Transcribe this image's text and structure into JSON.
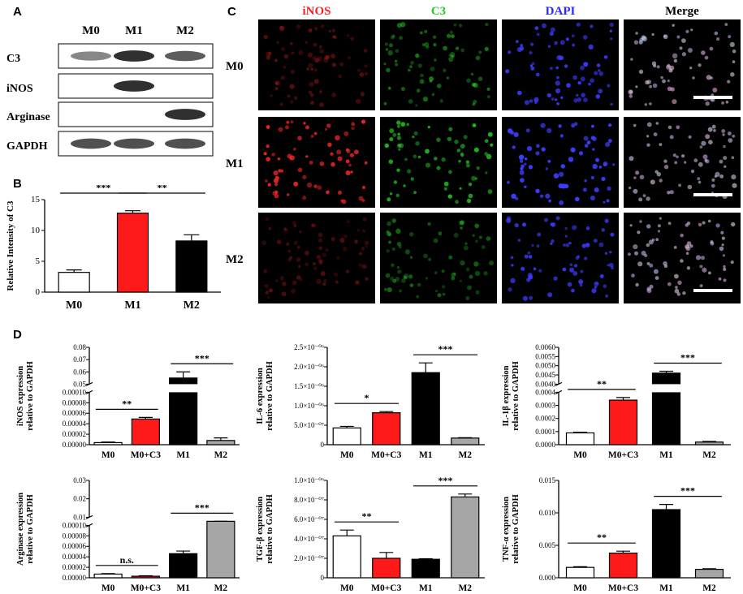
{
  "panels": {
    "A": "A",
    "B": "B",
    "C": "C",
    "D": "D"
  },
  "colors": {
    "white": "#ffffff",
    "red": "#ff1a1a",
    "black": "#000000",
    "gray": "#a6a6a6",
    "ifRed": "#ff2020",
    "ifGreen": "#22cc22",
    "ifBlue": "#2a2aff"
  },
  "blot": {
    "columns": [
      "M0",
      "M1",
      "M2"
    ],
    "rows": [
      {
        "label": "C3",
        "bands": [
          0.55,
          0.95,
          0.75
        ]
      },
      {
        "label": "iNOS",
        "bands": [
          0.0,
          0.95,
          0.0
        ]
      },
      {
        "label": "Arginase",
        "bands": [
          0.0,
          0.0,
          0.95
        ]
      },
      {
        "label": "GAPDH",
        "bands": [
          0.8,
          0.8,
          0.8
        ]
      }
    ]
  },
  "if_panel": {
    "columns": [
      "iNOS",
      "C3",
      "DAPI",
      "Merge"
    ],
    "rows": [
      "M0",
      "M1",
      "M2"
    ]
  },
  "chart_data": [
    {
      "id": "B",
      "type": "bar",
      "categories": [
        "M0",
        "M1",
        "M2"
      ],
      "values": [
        3.2,
        12.8,
        8.3
      ],
      "errors": [
        0.4,
        0.4,
        1.0
      ],
      "ylabel": "Relative Intensity of C3",
      "ylim": [
        0,
        15
      ],
      "yticks": [
        "0",
        "5",
        "10",
        "15"
      ],
      "ytick_values": [
        0,
        5,
        10,
        15
      ],
      "significance": [
        {
          "from": 0,
          "to": 1,
          "label": "***"
        },
        {
          "from": 1,
          "to": 2,
          "label": "**"
        }
      ]
    },
    {
      "id": "D-iNOS",
      "type": "bar",
      "categories": [
        "M0",
        "M0+C3",
        "M1",
        "M2"
      ],
      "values": [
        4e-06,
        4.9e-05,
        0.055,
        8e-06
      ],
      "errors": [
        1e-06,
        3e-06,
        0.005,
        5e-06
      ],
      "ylabel": [
        "iNOS  expression",
        "relative to GAPDH"
      ],
      "segments": [
        {
          "ticks": [
            0,
            2e-05,
            4e-05,
            6e-05,
            8e-05,
            0.0001
          ],
          "labels": [
            "0.00000",
            "0.00002",
            "0.00004",
            "0.00006",
            "0.00008",
            "0.00010"
          ]
        },
        {
          "ticks": [
            0.05,
            0.06,
            0.07,
            0.08
          ],
          "labels": [
            "0.05",
            "0.06",
            "0.07",
            "0.08"
          ]
        }
      ],
      "significance": [
        {
          "from": 0,
          "to": 1,
          "label": "**"
        },
        {
          "from": 2,
          "to": 3,
          "label": "***"
        }
      ]
    },
    {
      "id": "D-IL6",
      "type": "bar",
      "categories": [
        "M0",
        "M0+C3",
        "M1",
        "M2"
      ],
      "values": [
        4.3e-07,
        8.2e-07,
        1.85e-06,
        1.7e-07
      ],
      "errors": [
        4e-08,
        3e-08,
        2.5e-07,
        1e-08
      ],
      "ylabel": [
        "IL-6 expression",
        "relative to GAPDH"
      ],
      "ylim": [
        0,
        2.5e-06
      ],
      "ytick_values": [
        0,
        5e-07,
        1e-06,
        1.5e-06,
        2e-06,
        2.5e-06
      ],
      "yticks": [
        "0",
        "5.0×10⁻⁰⁷",
        "1.0×10⁻⁰⁶",
        "1.5×10⁻⁰⁶",
        "2.0×10⁻⁰⁶",
        "2.5×10⁻⁰⁶"
      ],
      "significance": [
        {
          "from": 0,
          "to": 1,
          "label": "*"
        },
        {
          "from": 2,
          "to": 3,
          "label": "***"
        }
      ]
    },
    {
      "id": "D-IL1b",
      "type": "bar",
      "categories": [
        "M0",
        "M0+C3",
        "M1",
        "M2"
      ],
      "values": [
        9e-05,
        0.00034,
        0.0046,
        2e-05
      ],
      "errors": [
        5e-06,
        2e-05,
        0.0001,
        5e-06
      ],
      "ylabel": [
        "IL-1β expression",
        "relative to GAPDH"
      ],
      "segments": [
        {
          "ticks": [
            0,
            0.0001,
            0.0002,
            0.0003,
            0.0004
          ],
          "labels": [
            "0.0000",
            "0.0001",
            "0.0002",
            "0.0003",
            "0.0004"
          ]
        },
        {
          "ticks": [
            0.004,
            0.0045,
            0.005,
            0.0055,
            0.006
          ],
          "labels": [
            "0.0040",
            "0.0045",
            "0.0050",
            "0.0055",
            "0.0060"
          ]
        }
      ],
      "significance": [
        {
          "from": 0,
          "to": 1,
          "label": "**"
        },
        {
          "from": 2,
          "to": 3,
          "label": "***"
        }
      ]
    },
    {
      "id": "D-Arginase",
      "type": "bar",
      "categories": [
        "M0",
        "M0+C3",
        "M1",
        "M2"
      ],
      "values": [
        7e-06,
        3e-06,
        4.6e-05,
        0.008
      ],
      "errors": [
        1e-06,
        1e-06,
        5e-06,
        0.001
      ],
      "ylabel": [
        "Arginase expression",
        "relative to GAPDH"
      ],
      "segments": [
        {
          "ticks": [
            0,
            2e-05,
            4e-05,
            6e-05,
            8e-05,
            0.0001
          ],
          "labels": [
            "0.00000",
            "0.00002",
            "0.00004",
            "0.00006",
            "0.00008",
            "0.00010"
          ]
        },
        {
          "ticks": [
            0.01,
            0.02,
            0.03
          ],
          "labels": [
            "0.01",
            "0.02",
            "0.03"
          ]
        }
      ],
      "significance": [
        {
          "from": 0,
          "to": 1,
          "label": "n.s."
        },
        {
          "from": 2,
          "to": 3,
          "label": "***"
        }
      ]
    },
    {
      "id": "D-TGFb",
      "type": "bar",
      "categories": [
        "M0",
        "M0+C3",
        "M1",
        "M2"
      ],
      "values": [
        4.3e-07,
        2e-07,
        1.9e-07,
        8.3e-07
      ],
      "errors": [
        6e-08,
        6e-08,
        5e-09,
        3e-08
      ],
      "ylabel": [
        "TGF-β expression",
        "relative to GAPDH"
      ],
      "ylim": [
        0,
        1e-06
      ],
      "ytick_values": [
        0,
        2e-07,
        4e-07,
        6e-07,
        8e-07,
        1e-06
      ],
      "yticks": [
        "0",
        "2.0×10⁻⁰⁷",
        "4.0×10⁻⁰⁷",
        "6.0×10⁻⁰⁷",
        "8.0×10⁻⁰⁷",
        "1.0×10⁻⁰⁶"
      ],
      "significance": [
        {
          "from": 0,
          "to": 1,
          "label": "**"
        },
        {
          "from": 2,
          "to": 3,
          "label": "***"
        }
      ]
    },
    {
      "id": "D-TNFa",
      "type": "bar",
      "categories": [
        "M0",
        "M0+C3",
        "M1",
        "M2"
      ],
      "values": [
        0.0016,
        0.0038,
        0.0105,
        0.0013
      ],
      "errors": [
        0.0001,
        0.0003,
        0.0008,
        0.0001
      ],
      "ylabel": [
        "TNF-α expression",
        "relative to GAPDH"
      ],
      "ylim": [
        0,
        0.015
      ],
      "ytick_values": [
        0,
        0.005,
        0.01,
        0.015
      ],
      "yticks": [
        "0.000",
        "0.005",
        "0.010",
        "0.015"
      ],
      "significance": [
        {
          "from": 0,
          "to": 1,
          "label": "**"
        },
        {
          "from": 2,
          "to": 3,
          "label": "***"
        }
      ]
    }
  ]
}
